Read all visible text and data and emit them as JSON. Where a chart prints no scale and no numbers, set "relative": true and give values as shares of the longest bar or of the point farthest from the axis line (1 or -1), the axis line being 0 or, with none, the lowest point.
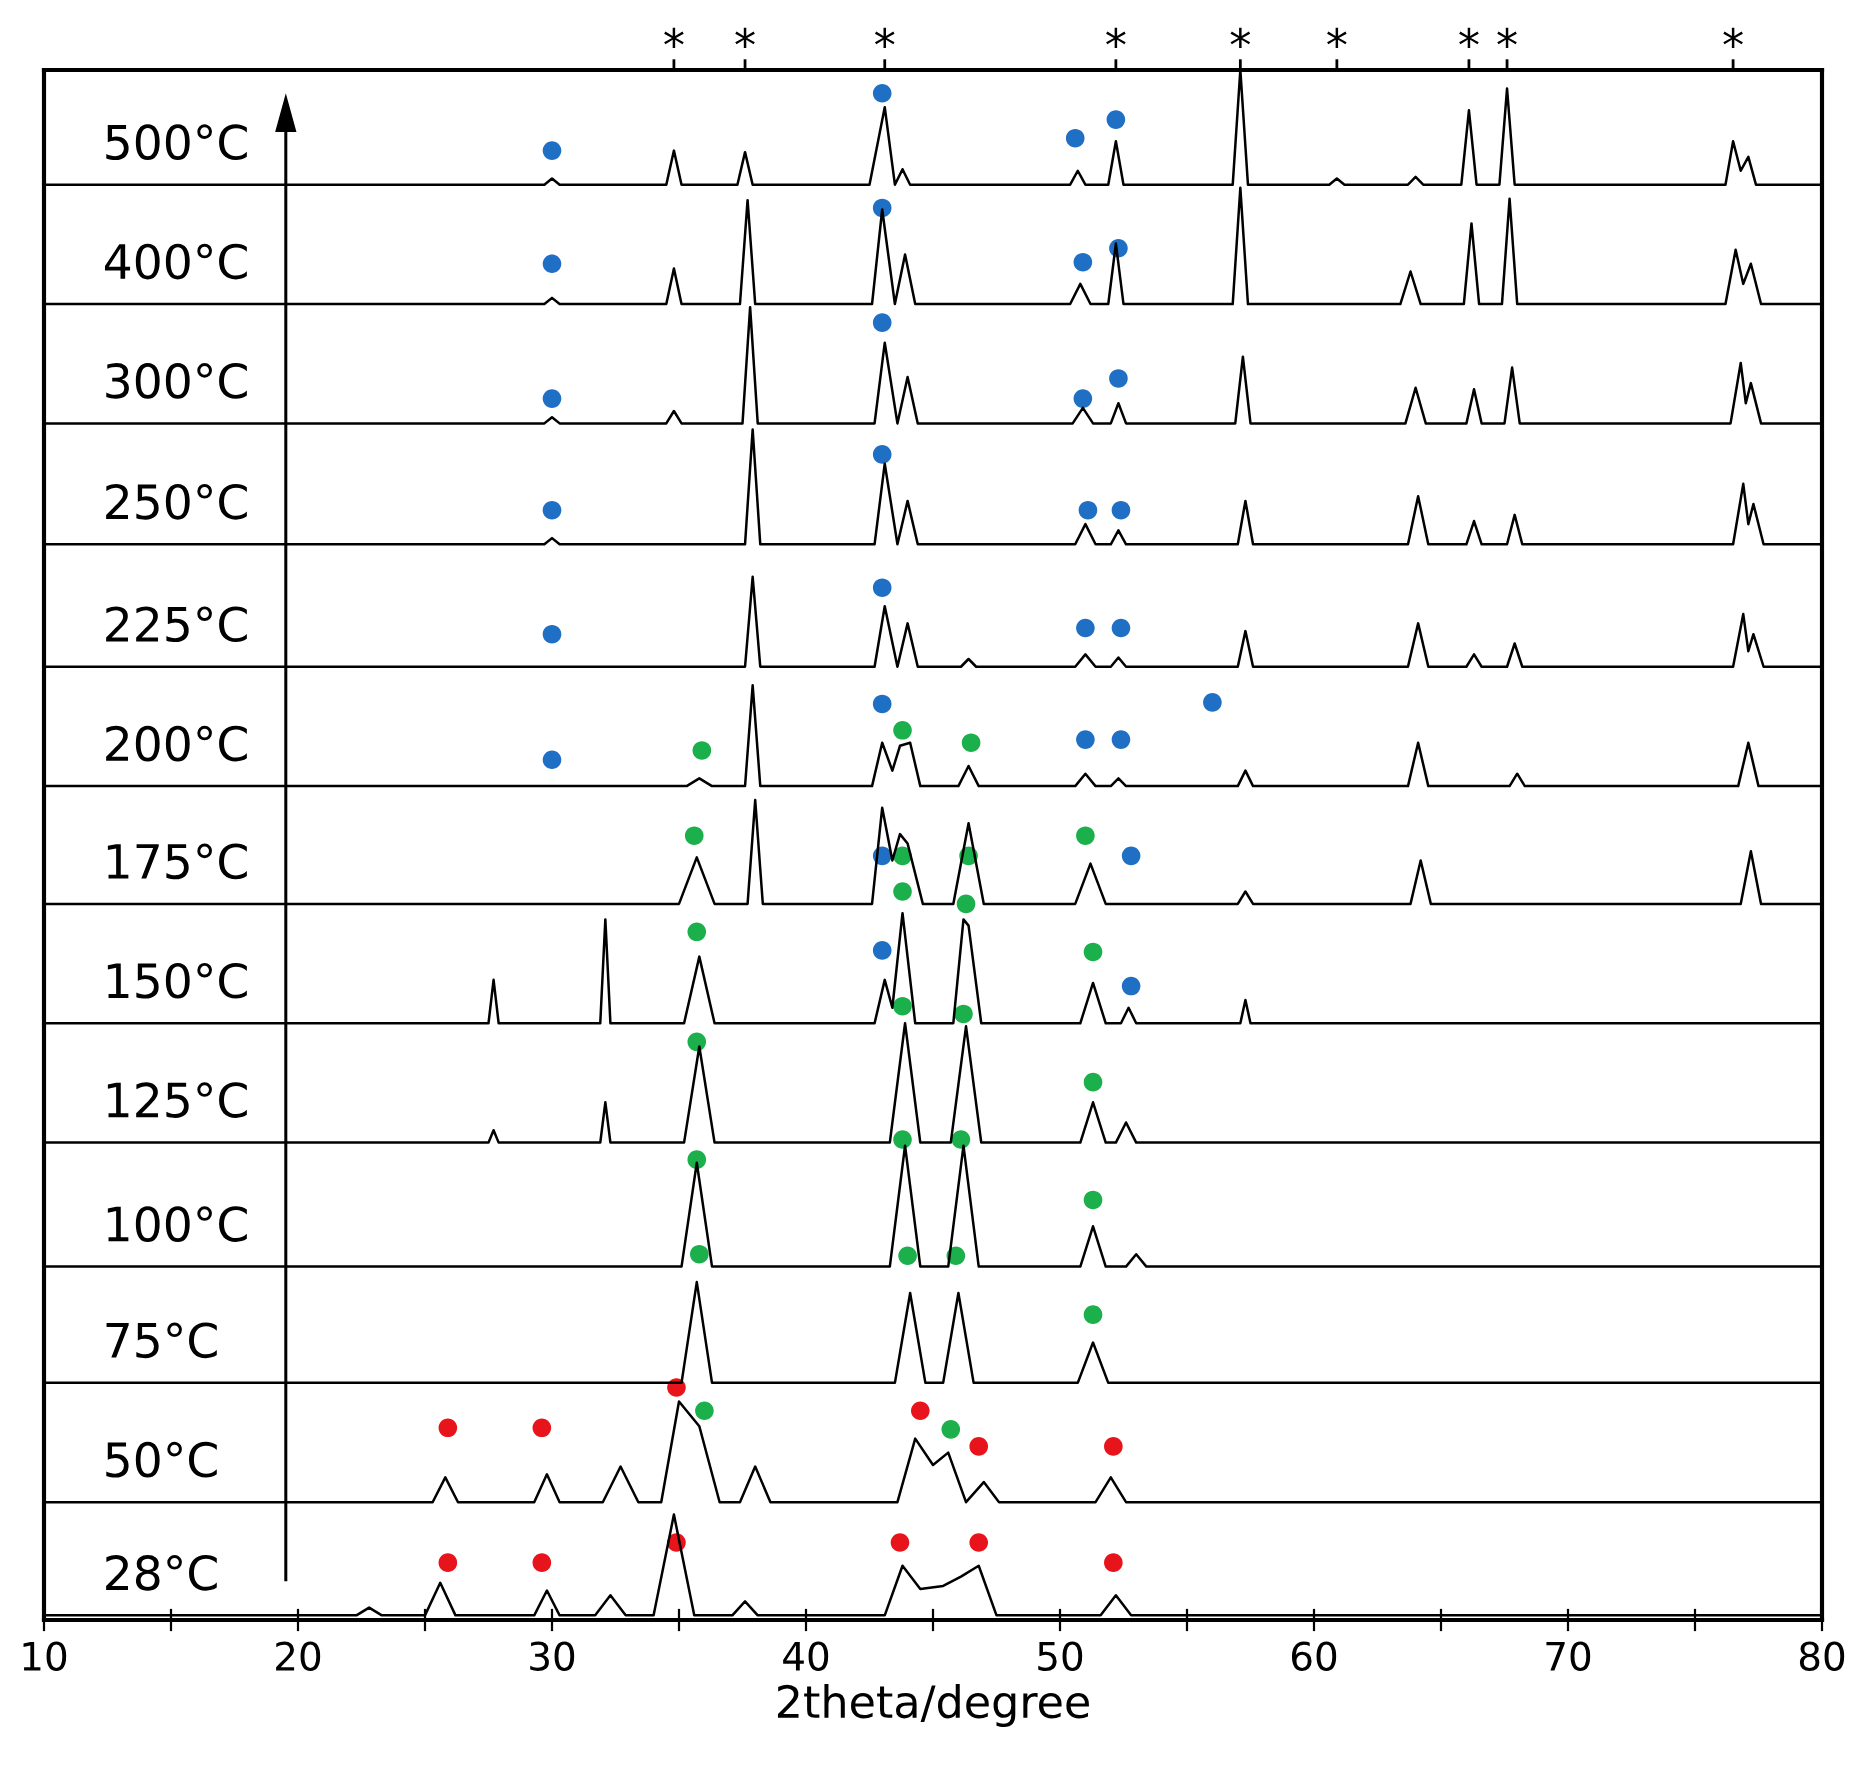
{
  "chart_data": {
    "type": "line",
    "relative": true,
    "xlabel": "2theta/degree",
    "xlim": [
      10,
      80
    ],
    "xticks": [
      10,
      {
        "value": 15,
        "label": null
      },
      20,
      {
        "value": 25,
        "label": null
      },
      30,
      {
        "value": 35,
        "label": null
      },
      40,
      {
        "value": 45,
        "label": null
      },
      50,
      {
        "value": 55,
        "label": null
      },
      60,
      {
        "value": 65,
        "label": null
      },
      70,
      {
        "value": 75,
        "label": null
      },
      80
    ],
    "tick_labels": "x",
    "grid": false,
    "ref_lines": [
      {
        "axis": "x",
        "value": 34.8,
        "label": "*"
      },
      {
        "axis": "x",
        "value": 37.6,
        "label": "*"
      },
      {
        "axis": "x",
        "value": 43.1,
        "label": "*"
      },
      {
        "axis": "x",
        "value": 52.2,
        "label": "*"
      },
      {
        "axis": "x",
        "value": 57.1,
        "label": "*"
      },
      {
        "axis": "x",
        "value": 60.9,
        "label": "*"
      },
      {
        "axis": "x",
        "value": 66.1,
        "label": "*"
      },
      {
        "axis": "x",
        "value": 67.6,
        "label": "*"
      },
      {
        "axis": "x",
        "value": 76.5,
        "label": "*"
      }
    ],
    "series": [
      {
        "name": "500°C",
        "color": "#000000",
        "x": [
          10,
          29.7,
          30.0,
          30.3,
          34.5,
          34.8,
          35.1,
          37.3,
          37.6,
          37.9,
          42.5,
          43.1,
          43.5,
          43.8,
          44.1,
          50.4,
          50.7,
          51.0,
          51.9,
          52.2,
          52.5,
          56.8,
          57.1,
          57.4,
          60.6,
          60.9,
          61.2,
          63.7,
          64.0,
          64.3,
          65.8,
          66.1,
          66.4,
          67.3,
          67.6,
          67.9,
          76.2,
          76.5,
          76.8,
          77.1,
          77.4,
          80
        ],
        "values": [
          0.926,
          0.926,
          0.93,
          0.926,
          0.926,
          0.948,
          0.926,
          0.926,
          0.947,
          0.926,
          0.926,
          0.976,
          0.926,
          0.936,
          0.926,
          0.926,
          0.935,
          0.926,
          0.926,
          0.954,
          0.926,
          0.926,
          1.0,
          0.926,
          0.926,
          0.93,
          0.926,
          0.926,
          0.931,
          0.926,
          0.926,
          0.974,
          0.926,
          0.926,
          0.988,
          0.926,
          0.926,
          0.954,
          0.935,
          0.944,
          0.926,
          0.926
        ]
      },
      {
        "name": "400°C",
        "color": "#000000",
        "x": [
          10,
          29.7,
          30.0,
          30.3,
          34.5,
          34.8,
          35.1,
          37.4,
          37.7,
          38.0,
          42.6,
          43.0,
          43.5,
          43.9,
          44.3,
          50.4,
          50.8,
          51.2,
          51.9,
          52.2,
          52.5,
          56.8,
          57.1,
          57.4,
          63.4,
          63.8,
          64.2,
          65.9,
          66.2,
          66.5,
          67.4,
          67.7,
          68.0,
          76.2,
          76.6,
          76.9,
          77.2,
          77.6,
          80
        ],
        "values": [
          0.849,
          0.849,
          0.853,
          0.849,
          0.849,
          0.872,
          0.849,
          0.849,
          0.916,
          0.849,
          0.849,
          0.91,
          0.849,
          0.881,
          0.849,
          0.849,
          0.862,
          0.849,
          0.849,
          0.888,
          0.849,
          0.849,
          0.924,
          0.849,
          0.849,
          0.87,
          0.849,
          0.849,
          0.901,
          0.849,
          0.849,
          0.917,
          0.849,
          0.849,
          0.884,
          0.862,
          0.875,
          0.849,
          0.849
        ]
      },
      {
        "name": "300°C",
        "color": "#000000",
        "x": [
          10,
          29.7,
          30.0,
          30.3,
          34.5,
          34.8,
          35.1,
          37.5,
          37.8,
          38.1,
          42.7,
          43.1,
          43.6,
          44.0,
          44.4,
          50.5,
          50.9,
          51.3,
          52.0,
          52.3,
          52.6,
          56.9,
          57.2,
          57.5,
          63.6,
          64.0,
          64.4,
          66.0,
          66.3,
          66.6,
          67.5,
          67.8,
          68.1,
          76.4,
          76.8,
          77.0,
          77.2,
          77.6,
          80
        ],
        "values": [
          0.772,
          0.772,
          0.776,
          0.772,
          0.772,
          0.78,
          0.772,
          0.772,
          0.847,
          0.772,
          0.772,
          0.824,
          0.772,
          0.802,
          0.772,
          0.772,
          0.782,
          0.772,
          0.772,
          0.785,
          0.772,
          0.772,
          0.815,
          0.772,
          0.772,
          0.795,
          0.772,
          0.772,
          0.794,
          0.772,
          0.772,
          0.808,
          0.772,
          0.772,
          0.811,
          0.785,
          0.798,
          0.772,
          0.772
        ]
      },
      {
        "name": "250°C",
        "color": "#000000",
        "x": [
          10,
          29.7,
          30.0,
          30.3,
          37.6,
          37.9,
          38.2,
          42.7,
          43.1,
          43.6,
          44.0,
          44.4,
          50.6,
          51.0,
          51.4,
          52.0,
          52.3,
          52.6,
          57.0,
          57.3,
          57.6,
          63.7,
          64.1,
          64.5,
          66.0,
          66.3,
          66.6,
          67.6,
          67.9,
          68.2,
          76.5,
          76.9,
          77.1,
          77.3,
          77.7,
          80
        ],
        "values": [
          0.694,
          0.694,
          0.698,
          0.694,
          0.694,
          0.768,
          0.694,
          0.694,
          0.746,
          0.694,
          0.722,
          0.694,
          0.694,
          0.707,
          0.694,
          0.694,
          0.703,
          0.694,
          0.694,
          0.722,
          0.694,
          0.694,
          0.725,
          0.694,
          0.694,
          0.709,
          0.694,
          0.694,
          0.713,
          0.694,
          0.694,
          0.733,
          0.707,
          0.72,
          0.694,
          0.694
        ]
      },
      {
        "name": "225°C",
        "color": "#000000",
        "x": [
          10,
          37.6,
          37.9,
          38.2,
          42.7,
          43.1,
          43.6,
          44.0,
          44.4,
          46.1,
          46.4,
          46.7,
          50.6,
          51.0,
          51.4,
          52.0,
          52.3,
          52.6,
          57.0,
          57.3,
          57.6,
          63.7,
          64.1,
          64.5,
          66.0,
          66.3,
          66.6,
          67.6,
          67.9,
          68.2,
          76.5,
          76.9,
          77.1,
          77.3,
          77.7,
          80
        ],
        "values": [
          0.615,
          0.615,
          0.673,
          0.615,
          0.615,
          0.654,
          0.615,
          0.643,
          0.615,
          0.615,
          0.62,
          0.615,
          0.615,
          0.623,
          0.615,
          0.615,
          0.621,
          0.615,
          0.615,
          0.638,
          0.615,
          0.615,
          0.643,
          0.615,
          0.615,
          0.623,
          0.615,
          0.615,
          0.63,
          0.615,
          0.615,
          0.649,
          0.625,
          0.636,
          0.615,
          0.615
        ]
      },
      {
        "name": "200°C",
        "color": "#000000",
        "x": [
          10,
          35.3,
          35.8,
          36.3,
          37.6,
          37.9,
          38.2,
          42.6,
          43.0,
          43.4,
          43.7,
          44.1,
          44.5,
          46.0,
          46.4,
          46.8,
          50.6,
          51.0,
          51.4,
          52.0,
          52.3,
          52.6,
          57.0,
          57.3,
          57.6,
          63.7,
          64.1,
          64.5,
          67.7,
          68.0,
          68.3,
          76.7,
          77.1,
          77.5,
          80
        ],
        "values": [
          0.538,
          0.538,
          0.543,
          0.538,
          0.538,
          0.603,
          0.538,
          0.538,
          0.566,
          0.548,
          0.564,
          0.566,
          0.538,
          0.538,
          0.551,
          0.538,
          0.538,
          0.546,
          0.538,
          0.538,
          0.543,
          0.538,
          0.538,
          0.548,
          0.538,
          0.538,
          0.566,
          0.538,
          0.538,
          0.546,
          0.538,
          0.538,
          0.566,
          0.538,
          0.538
        ]
      },
      {
        "name": "175°C",
        "color": "#000000",
        "x": [
          10,
          35.0,
          35.7,
          36.4,
          37.7,
          38.0,
          38.3,
          42.6,
          43.0,
          43.4,
          43.7,
          44.0,
          44.6,
          45.8,
          46.4,
          47.0,
          50.6,
          51.2,
          51.8,
          57.0,
          57.3,
          57.6,
          63.8,
          64.2,
          64.6,
          76.8,
          77.2,
          77.6,
          80
        ],
        "values": [
          0.462,
          0.462,
          0.492,
          0.462,
          0.462,
          0.529,
          0.462,
          0.462,
          0.524,
          0.49,
          0.507,
          0.501,
          0.462,
          0.462,
          0.514,
          0.462,
          0.462,
          0.488,
          0.462,
          0.462,
          0.47,
          0.462,
          0.462,
          0.49,
          0.462,
          0.462,
          0.496,
          0.462,
          0.462
        ]
      },
      {
        "name": "150°C",
        "color": "#000000",
        "x": [
          10,
          27.5,
          27.7,
          27.9,
          31.9,
          32.1,
          32.3,
          35.2,
          35.8,
          36.4,
          42.7,
          43.1,
          43.4,
          43.8,
          44.3,
          45.8,
          46.2,
          46.4,
          46.9,
          50.8,
          51.3,
          51.8,
          52.4,
          52.7,
          53.0,
          57.1,
          57.3,
          57.5,
          80
        ],
        "values": [
          0.385,
          0.385,
          0.413,
          0.385,
          0.385,
          0.452,
          0.385,
          0.385,
          0.428,
          0.385,
          0.385,
          0.413,
          0.395,
          0.456,
          0.385,
          0.385,
          0.452,
          0.448,
          0.385,
          0.385,
          0.411,
          0.385,
          0.385,
          0.395,
          0.385,
          0.385,
          0.4,
          0.385,
          0.385
        ]
      },
      {
        "name": "125°C",
        "color": "#000000",
        "x": [
          10,
          27.5,
          27.7,
          27.9,
          31.9,
          32.1,
          32.3,
          35.2,
          35.8,
          36.4,
          43.3,
          43.9,
          44.5,
          45.7,
          46.3,
          46.9,
          50.8,
          51.3,
          51.8,
          52.2,
          52.6,
          53.0,
          80
        ],
        "values": [
          0.308,
          0.308,
          0.316,
          0.308,
          0.308,
          0.334,
          0.308,
          0.308,
          0.37,
          0.308,
          0.308,
          0.385,
          0.308,
          0.308,
          0.383,
          0.308,
          0.308,
          0.334,
          0.308,
          0.308,
          0.321,
          0.308,
          0.308
        ]
      },
      {
        "name": "100°C",
        "color": "#000000",
        "x": [
          10,
          35.1,
          35.7,
          36.3,
          43.3,
          43.9,
          44.5,
          45.6,
          46.2,
          46.8,
          50.8,
          51.3,
          51.8,
          52.6,
          53.0,
          53.4,
          80
        ],
        "values": [
          0.228,
          0.228,
          0.295,
          0.228,
          0.228,
          0.306,
          0.228,
          0.228,
          0.306,
          0.228,
          0.228,
          0.254,
          0.228,
          0.228,
          0.236,
          0.228,
          0.228
        ]
      },
      {
        "name": "75°C",
        "color": "#000000",
        "x": [
          10,
          35.1,
          35.7,
          36.3,
          43.5,
          44.1,
          44.7,
          45.4,
          46.0,
          46.6,
          50.7,
          51.3,
          51.9,
          80
        ],
        "values": [
          0.153,
          0.153,
          0.218,
          0.153,
          0.153,
          0.211,
          0.153,
          0.153,
          0.211,
          0.153,
          0.153,
          0.179,
          0.153,
          0.153
        ]
      },
      {
        "name": "50°C",
        "color": "#000000",
        "x": [
          10,
          25.3,
          25.8,
          26.3,
          29.3,
          29.8,
          30.3,
          32.0,
          32.7,
          33.4,
          34.3,
          35.0,
          35.8,
          36.6,
          37.4,
          38.0,
          38.6,
          43.6,
          44.3,
          45.0,
          45.6,
          46.3,
          47.0,
          47.6,
          51.4,
          52.0,
          52.6,
          80
        ],
        "values": [
          0.076,
          0.076,
          0.092,
          0.076,
          0.076,
          0.094,
          0.076,
          0.076,
          0.099,
          0.076,
          0.076,
          0.141,
          0.125,
          0.076,
          0.076,
          0.099,
          0.076,
          0.076,
          0.117,
          0.1,
          0.108,
          0.076,
          0.089,
          0.076,
          0.076,
          0.092,
          0.076,
          0.076
        ]
      },
      {
        "name": "28°C",
        "color": "#000000",
        "x": [
          10,
          22.3,
          22.8,
          23.3,
          25.0,
          25.6,
          26.2,
          29.3,
          29.8,
          30.3,
          31.7,
          32.3,
          32.9,
          34.0,
          34.8,
          35.6,
          37.1,
          37.6,
          38.1,
          43.1,
          43.8,
          44.5,
          45.4,
          46.1,
          46.8,
          47.5,
          51.6,
          52.2,
          52.8,
          80
        ],
        "values": [
          0.003,
          0.003,
          0.008,
          0.003,
          0.003,
          0.024,
          0.003,
          0.003,
          0.019,
          0.003,
          0.003,
          0.016,
          0.003,
          0.003,
          0.068,
          0.003,
          0.003,
          0.012,
          0.003,
          0.003,
          0.035,
          0.02,
          0.022,
          0.028,
          0.035,
          0.003,
          0.003,
          0.016,
          0.003,
          0.003
        ]
      },
      {
        "type": "scatter",
        "marker": "circle",
        "color": "#1f6fc5",
        "x": [
          30.0,
          43.0,
          50.6,
          52.2,
          30.0,
          43.0,
          50.9,
          52.3,
          30.0,
          43.0,
          50.9,
          52.3,
          30.0,
          43.0,
          51.1,
          52.4,
          30.0,
          43.0,
          51.0,
          52.4,
          30.0,
          43.0,
          56.0,
          51.0,
          52.4,
          43.0,
          52.8,
          43.0,
          52.8
        ],
        "values": [
          0.948,
          0.985,
          0.956,
          0.968,
          0.875,
          0.911,
          0.876,
          0.885,
          0.788,
          0.837,
          0.788,
          0.801,
          0.716,
          0.752,
          0.716,
          0.716,
          0.636,
          0.666,
          0.64,
          0.64,
          0.555,
          0.591,
          0.592,
          0.568,
          0.568,
          0.493,
          0.493,
          0.432,
          0.409
        ]
      },
      {
        "type": "scatter",
        "marker": "circle",
        "color": "#1bb04b",
        "x": [
          35.9,
          43.8,
          46.5,
          35.6,
          43.8,
          46.4,
          51.0,
          35.7,
          43.8,
          46.3,
          51.3,
          35.7,
          43.8,
          46.2,
          51.3,
          35.7,
          43.8,
          46.1,
          51.3,
          35.8,
          44.0,
          45.9,
          51.3,
          36.0,
          45.7
        ],
        "values": [
          0.561,
          0.574,
          0.566,
          0.506,
          0.493,
          0.493,
          0.506,
          0.444,
          0.47,
          0.462,
          0.431,
          0.373,
          0.396,
          0.391,
          0.347,
          0.297,
          0.31,
          0.31,
          0.271,
          0.236,
          0.235,
          0.235,
          0.197,
          0.135,
          0.123
        ]
      },
      {
        "type": "scatter",
        "marker": "circle",
        "color": "#e8141b",
        "x": [
          25.9,
          29.6,
          34.9,
          44.5,
          46.8,
          52.1,
          25.9,
          29.6,
          34.9,
          43.7,
          46.8,
          52.1
        ],
        "values": [
          0.124,
          0.124,
          0.15,
          0.135,
          0.112,
          0.112,
          0.037,
          0.037,
          0.05,
          0.05,
          0.05,
          0.037
        ]
      }
    ]
  }
}
